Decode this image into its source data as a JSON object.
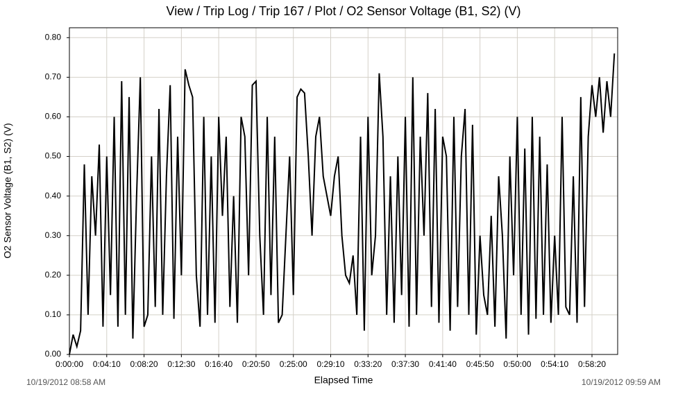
{
  "chart_data": {
    "type": "line",
    "title": "View / Trip Log / Trip 167 / Plot / O2 Sensor Voltage (B1, S2) (V)",
    "xlabel": "Elapsed Time",
    "ylabel": "O2 Sensor Voltage (B1, S2) (V)",
    "start_label": "10/19/2012 08:58 AM",
    "end_label": "10/19/2012 09:59 AM",
    "grid": true,
    "xlim": [
      0,
      3672
    ],
    "ylim": [
      0,
      0.825
    ],
    "xticks": [
      {
        "value": 0,
        "label": "0:00:00"
      },
      {
        "value": 250,
        "label": "0:04:10"
      },
      {
        "value": 500,
        "label": "0:08:20"
      },
      {
        "value": 750,
        "label": "0:12:30"
      },
      {
        "value": 1000,
        "label": "0:16:40"
      },
      {
        "value": 1250,
        "label": "0:20:50"
      },
      {
        "value": 1500,
        "label": "0:25:00"
      },
      {
        "value": 1750,
        "label": "0:29:10"
      },
      {
        "value": 2000,
        "label": "0:33:20"
      },
      {
        "value": 2250,
        "label": "0:37:30"
      },
      {
        "value": 2500,
        "label": "0:41:40"
      },
      {
        "value": 2750,
        "label": "0:45:50"
      },
      {
        "value": 3000,
        "label": "0:50:00"
      },
      {
        "value": 3250,
        "label": "0:54:10"
      },
      {
        "value": 3500,
        "label": "0:58:20"
      }
    ],
    "yticks": [
      {
        "value": 0,
        "label": "0.00"
      },
      {
        "value": 0.1,
        "label": "0.10"
      },
      {
        "value": 0.2,
        "label": "0.20"
      },
      {
        "value": 0.3,
        "label": "0.30"
      },
      {
        "value": 0.4,
        "label": "0.40"
      },
      {
        "value": 0.5,
        "label": "0.50"
      },
      {
        "value": 0.6,
        "label": "0.60"
      },
      {
        "value": 0.7,
        "label": "0.70"
      },
      {
        "value": 0.8,
        "label": "0.80"
      }
    ],
    "x": [
      0,
      25,
      50,
      75,
      100,
      125,
      150,
      175,
      200,
      225,
      250,
      275,
      300,
      325,
      350,
      375,
      400,
      425,
      450,
      475,
      500,
      525,
      550,
      575,
      600,
      625,
      650,
      675,
      700,
      725,
      750,
      775,
      800,
      825,
      850,
      875,
      900,
      925,
      950,
      975,
      1000,
      1025,
      1050,
      1075,
      1100,
      1125,
      1150,
      1175,
      1200,
      1225,
      1250,
      1275,
      1300,
      1325,
      1350,
      1375,
      1400,
      1425,
      1450,
      1475,
      1500,
      1525,
      1550,
      1575,
      1600,
      1625,
      1650,
      1675,
      1700,
      1725,
      1750,
      1775,
      1800,
      1825,
      1850,
      1875,
      1900,
      1925,
      1950,
      1975,
      2000,
      2025,
      2050,
      2075,
      2100,
      2125,
      2150,
      2175,
      2200,
      2225,
      2250,
      2275,
      2300,
      2325,
      2350,
      2375,
      2400,
      2425,
      2450,
      2475,
      2500,
      2525,
      2550,
      2575,
      2600,
      2625,
      2650,
      2675,
      2700,
      2725,
      2750,
      2775,
      2800,
      2825,
      2850,
      2875,
      2900,
      2925,
      2950,
      2975,
      3000,
      3025,
      3050,
      3075,
      3100,
      3125,
      3150,
      3175,
      3200,
      3225,
      3250,
      3275,
      3300,
      3325,
      3350,
      3375,
      3400,
      3425,
      3450,
      3475,
      3500,
      3525,
      3550,
      3575,
      3600,
      3625,
      3650
    ],
    "series": [
      {
        "color": "#000000",
        "values": [
          0.0,
          0.05,
          0.02,
          0.06,
          0.48,
          0.1,
          0.45,
          0.3,
          0.53,
          0.07,
          0.5,
          0.15,
          0.6,
          0.07,
          0.69,
          0.1,
          0.65,
          0.04,
          0.4,
          0.7,
          0.07,
          0.1,
          0.5,
          0.12,
          0.62,
          0.1,
          0.45,
          0.68,
          0.09,
          0.55,
          0.2,
          0.72,
          0.68,
          0.65,
          0.2,
          0.07,
          0.6,
          0.1,
          0.5,
          0.08,
          0.6,
          0.35,
          0.55,
          0.12,
          0.4,
          0.08,
          0.6,
          0.55,
          0.2,
          0.68,
          0.69,
          0.3,
          0.1,
          0.6,
          0.15,
          0.55,
          0.08,
          0.1,
          0.3,
          0.5,
          0.15,
          0.65,
          0.67,
          0.66,
          0.5,
          0.3,
          0.55,
          0.6,
          0.45,
          0.4,
          0.35,
          0.45,
          0.5,
          0.3,
          0.2,
          0.18,
          0.25,
          0.1,
          0.55,
          0.06,
          0.6,
          0.2,
          0.3,
          0.71,
          0.55,
          0.1,
          0.45,
          0.08,
          0.5,
          0.15,
          0.6,
          0.07,
          0.7,
          0.1,
          0.55,
          0.3,
          0.66,
          0.12,
          0.62,
          0.08,
          0.55,
          0.5,
          0.06,
          0.6,
          0.12,
          0.5,
          0.62,
          0.1,
          0.58,
          0.05,
          0.3,
          0.15,
          0.1,
          0.35,
          0.07,
          0.45,
          0.3,
          0.04,
          0.5,
          0.2,
          0.6,
          0.1,
          0.52,
          0.05,
          0.6,
          0.09,
          0.55,
          0.1,
          0.48,
          0.08,
          0.3,
          0.1,
          0.6,
          0.12,
          0.1,
          0.45,
          0.08,
          0.65,
          0.12,
          0.55,
          0.68,
          0.6,
          0.7,
          0.56,
          0.69,
          0.6,
          0.76
        ]
      }
    ]
  }
}
